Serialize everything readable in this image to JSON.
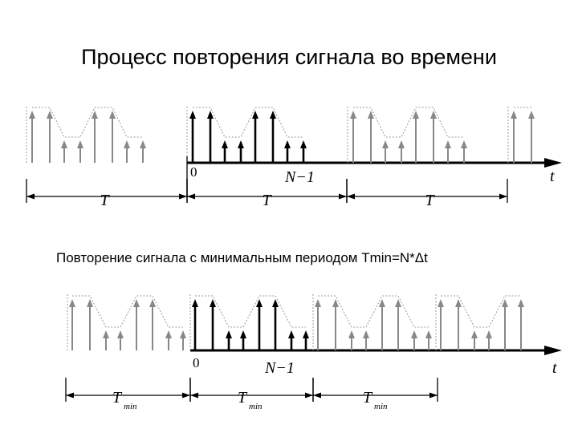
{
  "title": "Процесс повторения сигнала во времени",
  "diagram1": {
    "origin": "0",
    "last": "N−1",
    "axis": "t",
    "periods": [
      "T",
      "T",
      "T"
    ]
  },
  "caption": "Повторение сигнала с минимальным периодом Tmin=N*Δt",
  "diagram2": {
    "origin": "0",
    "last": "N−1",
    "axis": "t",
    "periods": [
      {
        "base": "T",
        "sub": "min"
      },
      {
        "base": "T",
        "sub": "min"
      },
      {
        "base": "T",
        "sub": "min"
      }
    ]
  }
}
